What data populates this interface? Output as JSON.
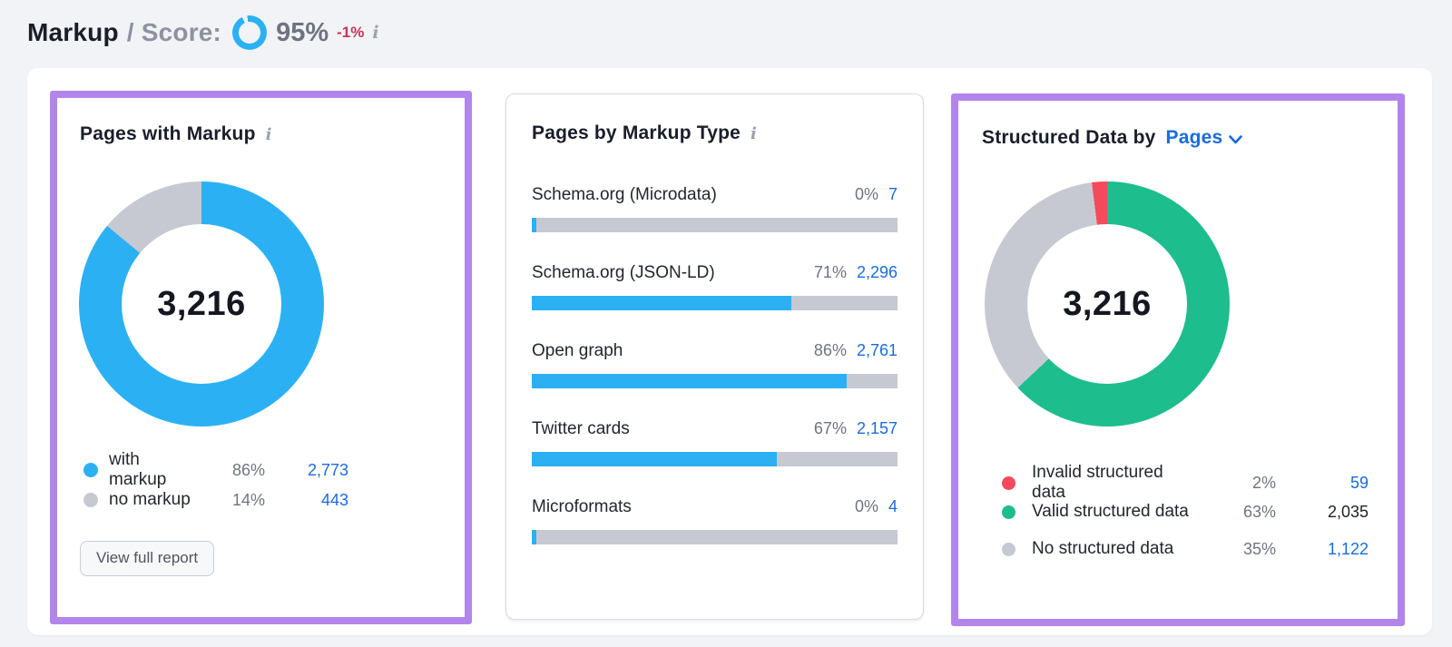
{
  "colors": {
    "blue": "#2bb1f3",
    "gray": "#c6c9d1",
    "green": "#1dbd8d",
    "red": "#f5495c",
    "link": "#1a6bdd",
    "dark": "#1c202a",
    "purple_highlight": "#b285ec"
  },
  "header": {
    "title": "Markup",
    "score_label": "/ Score:",
    "score_pct": "95%",
    "delta": "-1%",
    "info_icon": "i",
    "ring": {
      "from_deg": -8,
      "segments": [
        {
          "color": "#2bb1f3",
          "pct": 95
        },
        {
          "color": "transparent",
          "pct": 5
        }
      ]
    }
  },
  "panel_pages_with_markup": {
    "title": "Pages with Markup",
    "info_icon": "i",
    "total": "3,216",
    "donut": {
      "from_deg": 0,
      "segments": [
        {
          "color": "#2bb1f3",
          "pct": 86
        },
        {
          "color": "#c6c9d1",
          "pct": 14
        }
      ]
    },
    "legend": [
      {
        "label": "with markup",
        "pct": "86%",
        "value": "2,773",
        "dot": "#2bb1f3",
        "value_color": "#1a6bdd"
      },
      {
        "label": "no markup",
        "pct": "14%",
        "value": "443",
        "dot": "#c6c9d1",
        "value_color": "#1a6bdd"
      }
    ],
    "button": "View full report"
  },
  "panel_pages_by_markup_type": {
    "title": "Pages by Markup Type",
    "info_icon": "i",
    "rows": [
      {
        "label": "Schema.org (Microdata)",
        "pct": "0%",
        "value": "7",
        "fill": 1.2
      },
      {
        "label": "Schema.org (JSON-LD)",
        "pct": "71%",
        "value": "2,296",
        "fill": 71
      },
      {
        "label": "Open graph",
        "pct": "86%",
        "value": "2,761",
        "fill": 86
      },
      {
        "label": "Twitter cards",
        "pct": "67%",
        "value": "2,157",
        "fill": 67
      },
      {
        "label": "Microformats",
        "pct": "0%",
        "value": "4",
        "fill": 1.2
      }
    ],
    "bar_color": "#2bb1f3"
  },
  "panel_structured_data": {
    "title_prefix": "Structured Data by",
    "selector": "Pages",
    "total": "3,216",
    "donut": {
      "from_deg": 0,
      "segments": [
        {
          "color": "#1dbd8d",
          "pct": 63
        },
        {
          "color": "#c6c9d1",
          "pct": 35
        },
        {
          "color": "#f5495c",
          "pct": 2
        }
      ]
    },
    "legend": [
      {
        "label": "Invalid structured data",
        "pct": "2%",
        "value": "59",
        "dot": "#f5495c",
        "value_color": "#1a6bdd"
      },
      {
        "label": "Valid structured data",
        "pct": "63%",
        "value": "2,035",
        "dot": "#1dbd8d",
        "value_color": "#1c202a"
      },
      {
        "label": "No structured data",
        "pct": "35%",
        "value": "1,122",
        "dot": "#c6c9d1",
        "value_color": "#1a6bdd"
      }
    ]
  }
}
